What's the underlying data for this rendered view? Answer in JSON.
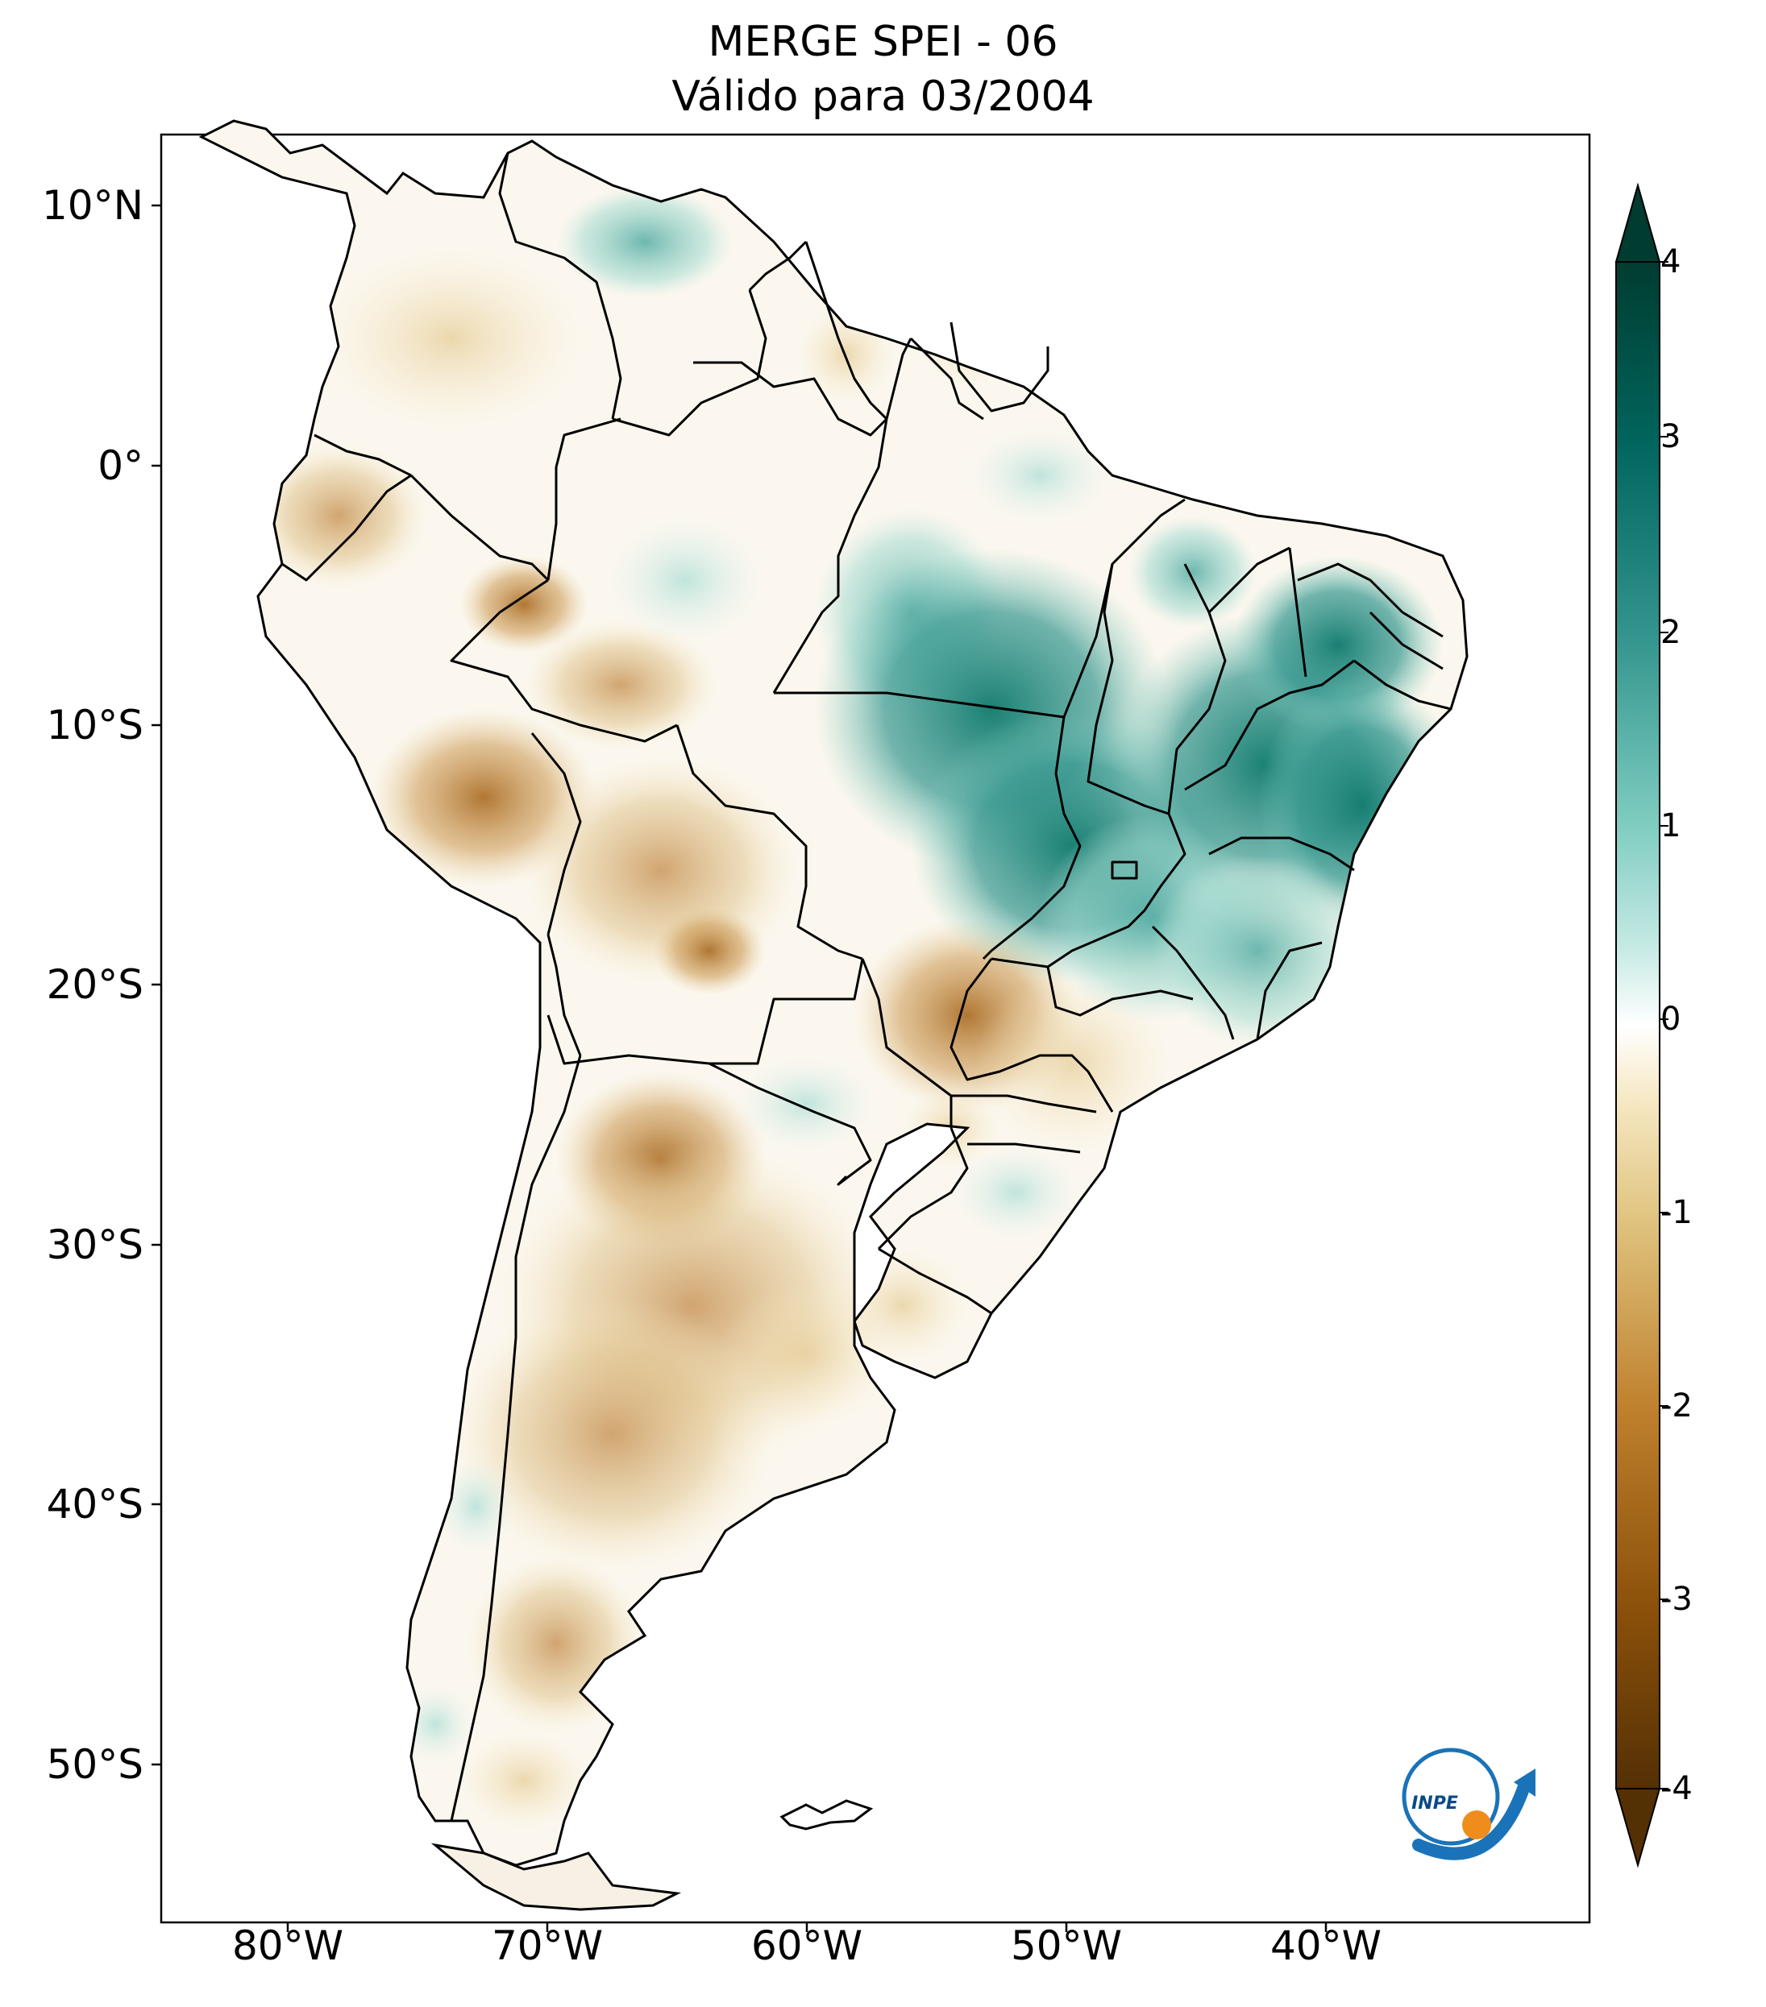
{
  "title": {
    "line1": "MERGE   SPEI - 06",
    "line2": "Válido para 03/2004"
  },
  "map": {
    "lon_range": [
      -85,
      -30
    ],
    "lat_range": [
      -56,
      13
    ],
    "lat_ticks": [
      "10°N",
      "0°",
      "10°S",
      "20°S",
      "30°S",
      "40°S",
      "50°S"
    ],
    "lon_ticks": [
      "80°W",
      "70°W",
      "60°W",
      "50°W",
      "40°W"
    ],
    "variable": "SPEI-06",
    "wet_regions": [
      "Northeast Brazil",
      "Central Brazil (Mato Grosso, Goiás)",
      "Northern Venezuela"
    ],
    "dry_regions": [
      "Western Amazon / Peru",
      "Bolivia",
      "Central-Northern Argentina",
      "Mato Grosso do Sul"
    ]
  },
  "colorbar": {
    "colormap": "BrBG",
    "ticks": [
      "4",
      "3",
      "2",
      "1",
      "0",
      "-1",
      "-2",
      "-3",
      "-4"
    ],
    "range": [
      -4,
      4
    ],
    "colors": {
      "dry_extreme": "#543005",
      "dry": "#d8b365",
      "neutral": "#ffffff",
      "wet": "#5ab4ac",
      "wet_extreme": "#003c30"
    }
  },
  "logo": {
    "text": "INPE"
  }
}
